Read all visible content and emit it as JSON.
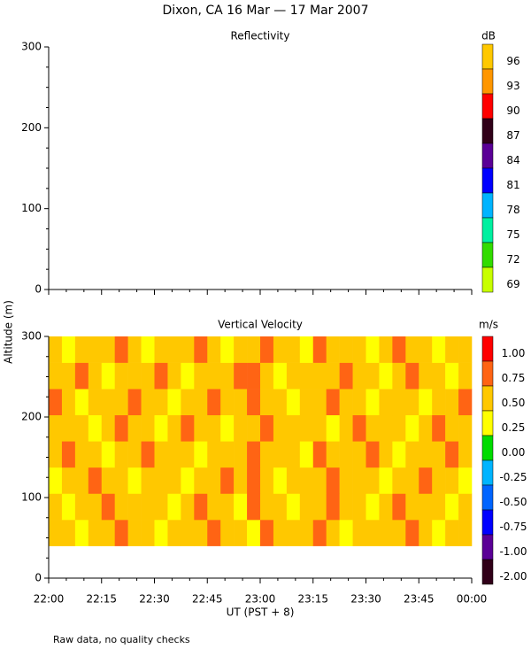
{
  "title": "Dixon, CA 16 Mar — 17 Mar 2007",
  "y_label": "Altitude (m)",
  "x_label": "UT (PST + 8)",
  "note": "Raw data, no quality checks",
  "chart_data": [
    {
      "type": "heatmap",
      "title": "Reflectivity",
      "ylim": [
        0,
        300
      ],
      "yticks": [
        0,
        100,
        200,
        300
      ],
      "xlim": [
        0,
        120
      ],
      "xticks": [
        0,
        15,
        30,
        45,
        60,
        75,
        90,
        105,
        120
      ],
      "colorbar": {
        "unit": "dB",
        "labels": [
          96,
          93,
          90,
          87,
          84,
          81,
          78,
          75,
          72,
          69
        ],
        "colors": [
          "#ffc800",
          "#ff9600",
          "#ff0000",
          "#300018",
          "#5a0096",
          "#0000ff",
          "#00b4ff",
          "#00f0a0",
          "#32dc00",
          "#c8ff00"
        ]
      }
    },
    {
      "type": "heatmap",
      "title": "Vertical Velocity",
      "ylim": [
        0,
        300
      ],
      "yticks": [
        0,
        100,
        200,
        300
      ],
      "xlim": [
        0,
        120
      ],
      "xticks": [
        {
          "value": 0,
          "label": "22:00"
        },
        {
          "value": 15,
          "label": "22:15"
        },
        {
          "value": 30,
          "label": "22:30"
        },
        {
          "value": 45,
          "label": "22:45"
        },
        {
          "value": 60,
          "label": "23:00"
        },
        {
          "value": 75,
          "label": "23:15"
        },
        {
          "value": 90,
          "label": "23:30"
        },
        {
          "value": 105,
          "label": "23:45"
        },
        {
          "value": 120,
          "label": "00:00"
        }
      ],
      "colorbar": {
        "unit": "m/s",
        "labels": [
          {
            "value": 1,
            "label": "1.00"
          },
          {
            "value": 0.75,
            "label": "0.75"
          },
          {
            "value": 0.5,
            "label": "0.50"
          },
          {
            "value": 0.25,
            "label": "0.25"
          },
          {
            "value": 0,
            "label": "0.00"
          },
          {
            "value": -0.25,
            "label": "-0.25"
          },
          {
            "value": -0.5,
            "label": "-0.50"
          },
          {
            "value": -0.75,
            "label": "-0.75"
          },
          {
            "value": -1,
            "label": "-1.00"
          },
          {
            "value": -2,
            "label": "-2.00"
          }
        ],
        "colors": [
          "#ff0000",
          "#ff6414",
          "#ffc800",
          "#ffff00",
          "#00dc00",
          "#00b4ff",
          "#0064ff",
          "#0000ff",
          "#5a0096",
          "#300018"
        ]
      },
      "xbins": [
        0,
        3.75,
        7.5,
        11.25,
        15,
        18.75,
        22.5,
        26.25,
        30,
        33.75,
        37.5,
        41.25,
        45,
        48.75,
        52.5,
        56.25,
        60,
        63.75,
        67.5,
        71.25,
        75,
        78.75,
        82.5,
        86.25,
        90,
        93.75,
        97.5,
        101.25,
        105,
        108.75,
        112.5,
        116.25,
        120
      ],
      "ybins": [
        40,
        72.5,
        105,
        137.5,
        170,
        202.5,
        235,
        267.5,
        300
      ],
      "z": [
        [
          0.5,
          0.5,
          0.25,
          0.5,
          0.5,
          0.75,
          0.5,
          0.5,
          0.25,
          0.5,
          0.5,
          0.5,
          0.75,
          0.5,
          0.5,
          0.25,
          0.75,
          0.5,
          0.5,
          0.5,
          0.75,
          0.5,
          0.25,
          0.5,
          0.5,
          0.5,
          0.5,
          0.75,
          0.5,
          0.25,
          0.5,
          0.5
        ],
        [
          0.5,
          0.25,
          0.5,
          0.5,
          0.75,
          0.5,
          0.5,
          0.5,
          0.5,
          0.25,
          0.5,
          0.75,
          0.5,
          0.5,
          0.25,
          0.75,
          0.5,
          0.5,
          0.25,
          0.5,
          0.5,
          0.75,
          0.5,
          0.5,
          0.25,
          0.5,
          0.75,
          0.5,
          0.5,
          0.5,
          0.25,
          0.5
        ],
        [
          0.25,
          0.5,
          0.5,
          0.75,
          0.5,
          0.5,
          0.25,
          0.5,
          0.5,
          0.5,
          0.25,
          0.5,
          0.5,
          0.75,
          0.5,
          0.75,
          0.5,
          0.25,
          0.5,
          0.5,
          0.5,
          0.75,
          0.5,
          0.5,
          0.5,
          0.25,
          0.5,
          0.5,
          0.75,
          0.5,
          0.5,
          0.25
        ],
        [
          0.5,
          0.75,
          0.5,
          0.5,
          0.25,
          0.5,
          0.5,
          0.75,
          0.5,
          0.5,
          0.5,
          0.25,
          0.5,
          0.5,
          0.5,
          0.75,
          0.5,
          0.5,
          0.5,
          0.25,
          0.75,
          0.5,
          0.5,
          0.5,
          0.75,
          0.5,
          0.25,
          0.5,
          0.5,
          0.5,
          0.75,
          0.5
        ],
        [
          0.5,
          0.5,
          0.5,
          0.25,
          0.5,
          0.75,
          0.5,
          0.5,
          0.25,
          0.5,
          0.75,
          0.5,
          0.5,
          0.25,
          0.5,
          0.5,
          0.75,
          0.5,
          0.5,
          0.5,
          0.5,
          0.25,
          0.5,
          0.75,
          0.5,
          0.5,
          0.5,
          0.25,
          0.5,
          0.75,
          0.5,
          0.5
        ],
        [
          0.75,
          0.5,
          0.25,
          0.5,
          0.5,
          0.5,
          0.75,
          0.5,
          0.5,
          0.25,
          0.5,
          0.5,
          0.75,
          0.5,
          0.5,
          0.75,
          0.5,
          0.5,
          0.25,
          0.5,
          0.5,
          0.75,
          0.5,
          0.5,
          0.25,
          0.5,
          0.5,
          0.5,
          0.25,
          0.5,
          0.5,
          0.75
        ],
        [
          0.5,
          0.5,
          0.75,
          0.5,
          0.25,
          0.5,
          0.5,
          0.5,
          0.75,
          0.5,
          0.25,
          0.5,
          0.5,
          0.5,
          0.75,
          0.75,
          0.5,
          0.25,
          0.5,
          0.5,
          0.5,
          0.5,
          0.75,
          0.5,
          0.5,
          0.25,
          0.5,
          0.75,
          0.5,
          0.5,
          0.25,
          0.5
        ],
        [
          0.5,
          0.25,
          0.5,
          0.5,
          0.5,
          0.75,
          0.5,
          0.25,
          0.5,
          0.5,
          0.5,
          0.75,
          0.5,
          0.25,
          0.5,
          0.5,
          0.75,
          0.5,
          0.5,
          0.25,
          0.75,
          0.5,
          0.5,
          0.5,
          0.25,
          0.5,
          0.75,
          0.5,
          0.5,
          0.25,
          0.5,
          0.5
        ]
      ]
    }
  ]
}
